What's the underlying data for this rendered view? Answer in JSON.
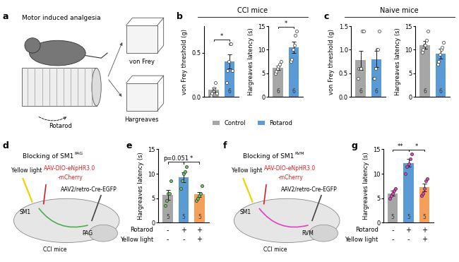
{
  "figure": {
    "panel_labels": [
      "a",
      "b",
      "c",
      "d",
      "e",
      "f",
      "g"
    ],
    "group_titles": [
      "CCI mice",
      "Naive mice"
    ],
    "legend": {
      "names": [
        "Control",
        "Rotarod"
      ],
      "colors": [
        "#a6a6a6",
        "#5b9bd5"
      ]
    },
    "diagram_a": {
      "title": "Motor induced analgesia",
      "rod": "Rotarod",
      "test1": "von Frey",
      "test2": "Hargreaves"
    },
    "diagram_d": {
      "title": "Blocking of SM1",
      "title_sup": "PAG",
      "light": "Yellow light",
      "virus1": "AAV-DIO-eNpHR3.0",
      "virus1b": "-mCherry",
      "virus2": "AAV2/retro-Cre-EGFP",
      "region1": "SM1",
      "region2": "PAG",
      "mice": "CCI mice",
      "color": "#4caf50"
    },
    "diagram_f": {
      "title": "Blocking of SM1",
      "title_sup": "RVM",
      "light": "Yellow light",
      "virus1": "AAV-DIO-eNpHR3.0",
      "virus1b": "-mCherry",
      "virus2": "AAV2/retro-Cre-EGFP",
      "region1": "SM1",
      "region2": "RVM",
      "mice": "CCI mice",
      "color": "#e040c0"
    }
  },
  "chart_data": [
    {
      "type": "bar",
      "ylabel": "von Frey threshold (g)",
      "categories": [
        null,
        null
      ],
      "values": [
        0.08,
        0.4
      ],
      "errors": [
        0.025,
        0.08
      ],
      "colors": [
        "#a6a6a6",
        "#5b9bd5"
      ],
      "n": [
        6,
        6
      ],
      "points": [
        [
          0.02,
          0.04,
          0.07,
          0.1,
          0.16,
          0.04
        ],
        [
          0.16,
          0.3,
          0.4,
          0.6,
          0.6,
          0.3
        ]
      ],
      "point_color": "#ffffff",
      "ylim": [
        0,
        0.8
      ],
      "yticks": [
        {
          "value": 0,
          "label": "0.0"
        },
        {
          "value": 0.5,
          "label": "0.5"
        }
      ],
      "significance": [
        {
          "from": 0,
          "to": 1,
          "label": "*"
        }
      ]
    },
    {
      "type": "bar",
      "ylabel": "Hargreaves latency (s)",
      "categories": [
        null,
        null
      ],
      "values": [
        6.2,
        10.5
      ],
      "errors": [
        0.5,
        1.2
      ],
      "colors": [
        "#a6a6a6",
        "#5b9bd5"
      ],
      "n": [
        6,
        6
      ],
      "points": [
        [
          5,
          5.5,
          6,
          6.5,
          7,
          7.5
        ],
        [
          7.5,
          8,
          10,
          11,
          13,
          14
        ]
      ],
      "point_color": "#ffffff",
      "ylim": [
        0,
        15
      ],
      "yticks": [
        0,
        5,
        10,
        15
      ],
      "significance": [
        {
          "from": 0,
          "to": 1,
          "label": "*"
        }
      ]
    },
    {
      "type": "bar",
      "ylabel": "von Frey threshold (g)",
      "categories": [
        null,
        null
      ],
      "values": [
        0.78,
        0.8
      ],
      "errors": [
        0.2,
        0.17
      ],
      "colors": [
        "#a6a6a6",
        "#5b9bd5"
      ],
      "n": [
        6,
        6
      ],
      "points": [
        [
          0.4,
          0.6,
          0.6,
          0.6,
          1.4,
          1.4
        ],
        [
          0.4,
          0.4,
          0.6,
          1.0,
          1.0,
          1.4
        ]
      ],
      "point_color": "#ffffff",
      "ylim": [
        0,
        1.5
      ],
      "yticks": [
        {
          "value": 0,
          "label": "0.0"
        },
        {
          "value": 0.5,
          "label": "0.5"
        },
        {
          "value": 1.0,
          "label": "1.0"
        },
        {
          "value": 1.5,
          "label": "1.5"
        }
      ],
      "significance": []
    },
    {
      "type": "bar",
      "ylabel": "Hargreaves latency (s)",
      "categories": [
        null,
        null
      ],
      "values": [
        11,
        9.2
      ],
      "errors": [
        0.8,
        1.0
      ],
      "colors": [
        "#a6a6a6",
        "#5b9bd5"
      ],
      "n": [
        6,
        6
      ],
      "points": [
        [
          9.5,
          10,
          11,
          11,
          12,
          14
        ],
        [
          7,
          7.5,
          9,
          10,
          10.5,
          11.5
        ]
      ],
      "point_color": "#ffffff",
      "ylim": [
        0,
        15
      ],
      "yticks": [
        0,
        5,
        10,
        15
      ],
      "significance": []
    },
    {
      "type": "bar",
      "ylabel": "Hargreaves latency (s)",
      "categories": [
        null,
        null,
        null
      ],
      "values": [
        5.7,
        9.3,
        5.8
      ],
      "errors": [
        1.0,
        1.0,
        0.5
      ],
      "colors": [
        "#a6a6a6",
        "#5b9bd5",
        "#f5a05a"
      ],
      "n": [
        5,
        5,
        5
      ],
      "points": [
        [
          3.5,
          4.5,
          6,
          6,
          8.5
        ],
        [
          7,
          8.5,
          10,
          10.5,
          11.5
        ],
        [
          4.5,
          5,
          5.5,
          6,
          7.5
        ]
      ],
      "point_color": "#70c05a",
      "ylim": [
        0,
        15
      ],
      "yticks": [
        0,
        5,
        10,
        15
      ],
      "significance": [
        {
          "from": 0,
          "to": 1,
          "label": "p=0.051"
        },
        {
          "from": 1,
          "to": 2,
          "label": "*"
        }
      ],
      "conditions": [
        {
          "name": "Rotarod",
          "marks": [
            "-",
            "+",
            "+"
          ]
        },
        {
          "name": "Yellow light",
          "marks": [
            "-",
            "-",
            "+"
          ]
        }
      ]
    },
    {
      "type": "bar",
      "ylabel": "Hargreaves latency (s)",
      "categories": [
        null,
        null,
        null
      ],
      "values": [
        6.0,
        12.2,
        7.2
      ],
      "errors": [
        0.5,
        0.8,
        0.8
      ],
      "colors": [
        "#a6a6a6",
        "#5b9bd5",
        "#f5a05a"
      ],
      "n": [
        5,
        5,
        5
      ],
      "points": [
        [
          5,
          5.5,
          6,
          6.5,
          7
        ],
        [
          10,
          11.5,
          12,
          13,
          14
        ],
        [
          5.5,
          6,
          7,
          8.5,
          9
        ]
      ],
      "point_color": "#e040c0",
      "ylim": [
        0,
        15
      ],
      "yticks": [
        0,
        5,
        10,
        15
      ],
      "significance": [
        {
          "from": 0,
          "to": 1,
          "label": "**"
        },
        {
          "from": 1,
          "to": 2,
          "label": "*"
        }
      ],
      "conditions": [
        {
          "name": "Rotarod",
          "marks": [
            "-",
            "+",
            "+"
          ]
        },
        {
          "name": "Yellow light",
          "marks": [
            "-",
            "-",
            "+"
          ]
        }
      ]
    }
  ]
}
